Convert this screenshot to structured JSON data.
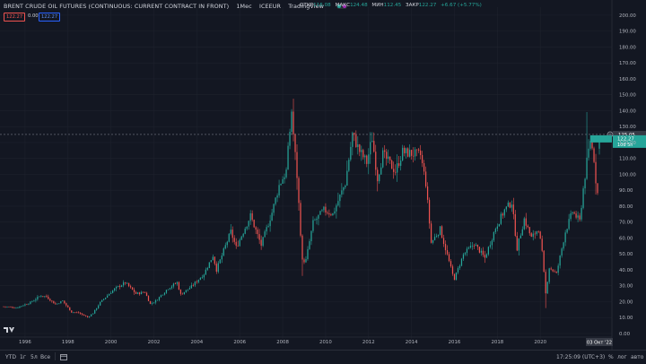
{
  "header": {
    "symbol_title": "BRENT CRUDE OIL FUTURES (CONTINUOUS: CURRENT CONTRACT IN FRONT)",
    "interval": "1Мес",
    "exchange": "ICEEUR",
    "source": "TradingView"
  },
  "ohlc": {
    "open_label": "ОТКР",
    "open": "116.08",
    "high_label": "МАКС",
    "high": "124.48",
    "low_label": "МИН",
    "low": "112.45",
    "close_label": "ЗАКР",
    "close": "122.27",
    "change": "+6.67 (+5.77%)"
  },
  "pills": {
    "sell": "122.27",
    "spread": "0.00",
    "buy": "122.27"
  },
  "price_scale": {
    "labels": [
      "200.00",
      "190.00",
      "180.00",
      "170.00",
      "160.00",
      "150.00",
      "140.00",
      "130.00",
      "120.00",
      "110.00",
      "100.00",
      "90.00",
      "80.00",
      "70.00",
      "60.00",
      "50.00",
      "40.00",
      "30.00",
      "20.00",
      "10.00",
      "0.00"
    ],
    "crosshair_price": "125.05",
    "last_price": "122.27",
    "countdown": "10d 5h"
  },
  "time_scale": {
    "labels": [
      "1996",
      "1998",
      "2000",
      "2002",
      "2004",
      "2006",
      "2008",
      "2010",
      "2012",
      "2014",
      "2016",
      "2018",
      "2020"
    ],
    "cursor_date": "03 Окт '22"
  },
  "bottom": {
    "ranges": [
      "YTD",
      "1г",
      "5л",
      "Все"
    ],
    "clock": "17:25:09 (UTC+3)",
    "percent": "%",
    "log": "лог",
    "auto": "авто"
  },
  "colors": {
    "up": "#26a69a",
    "down": "#ef5350",
    "background": "#131722",
    "grid": "#1e222d"
  },
  "chart_data": {
    "type": "candlestick",
    "title": "BRENT CRUDE OIL FUTURES (CONTINUOUS: CURRENT CONTRACT IN FRONT)",
    "interval": "monthly",
    "ylim": [
      0,
      205
    ],
    "xlim": [
      "1994-11",
      "2022-12"
    ],
    "anchors": [
      [
        "1995-01",
        17.0
      ],
      [
        "1995-08",
        16.2
      ],
      [
        "1996-04",
        19.5
      ],
      [
        "1996-10",
        24.0
      ],
      [
        "1997-01",
        23.2
      ],
      [
        "1997-06",
        18.3
      ],
      [
        "1997-10",
        20.5
      ],
      [
        "1998-03",
        13.5
      ],
      [
        "1998-07",
        13.0
      ],
      [
        "1998-12",
        10.2
      ],
      [
        "1999-03",
        12.8
      ],
      [
        "1999-07",
        19.5
      ],
      [
        "1999-12",
        25.0
      ],
      [
        "2000-03",
        28.0
      ],
      [
        "2000-09",
        32.0
      ],
      [
        "2001-03",
        25.0
      ],
      [
        "2001-08",
        26.0
      ],
      [
        "2001-11",
        18.5
      ],
      [
        "2002-02",
        20.5
      ],
      [
        "2002-09",
        28.5
      ],
      [
        "2003-02",
        32.0
      ],
      [
        "2003-04",
        24.5
      ],
      [
        "2003-10",
        29.5
      ],
      [
        "2004-05",
        37.5
      ],
      [
        "2004-10",
        49.0
      ],
      [
        "2004-12",
        40.0
      ],
      [
        "2005-08",
        64.0
      ],
      [
        "2005-11",
        54.0
      ],
      [
        "2006-07",
        74.0
      ],
      [
        "2007-01",
        55.5
      ],
      [
        "2007-07",
        76.0
      ],
      [
        "2007-11",
        93.0
      ],
      [
        "2008-03",
        102.0
      ],
      [
        "2008-06",
        140.0
      ],
      [
        "2008-07",
        125.0
      ],
      [
        "2008-09",
        99.0
      ],
      [
        "2008-12",
        45.5
      ],
      [
        "2009-02",
        46.0
      ],
      [
        "2009-06",
        69.5
      ],
      [
        "2009-12",
        77.5
      ],
      [
        "2010-05",
        75.0
      ],
      [
        "2010-12",
        94.5
      ],
      [
        "2011-04",
        125.0
      ],
      [
        "2011-08",
        114.5
      ],
      [
        "2011-12",
        107.5
      ],
      [
        "2012-03",
        123.0
      ],
      [
        "2012-06",
        97.5
      ],
      [
        "2012-09",
        112.5
      ],
      [
        "2013-04",
        102.0
      ],
      [
        "2013-08",
        114.0
      ],
      [
        "2014-06",
        112.0
      ],
      [
        "2014-09",
        94.5
      ],
      [
        "2014-12",
        57.0
      ],
      [
        "2015-05",
        65.5
      ],
      [
        "2015-12",
        37.0
      ],
      [
        "2016-01",
        34.5
      ],
      [
        "2016-06",
        49.5
      ],
      [
        "2016-12",
        56.5
      ],
      [
        "2017-06",
        47.5
      ],
      [
        "2017-12",
        66.5
      ],
      [
        "2018-05",
        77.5
      ],
      [
        "2018-09",
        82.5
      ],
      [
        "2018-12",
        53.5
      ],
      [
        "2019-04",
        72.0
      ],
      [
        "2019-08",
        60.0
      ],
      [
        "2019-12",
        66.0
      ],
      [
        "2020-02",
        50.5
      ],
      [
        "2020-04",
        25.0
      ],
      [
        "2020-06",
        41.5
      ],
      [
        "2020-10",
        37.5
      ],
      [
        "2021-03",
        64.0
      ],
      [
        "2021-07",
        76.5
      ],
      [
        "2021-11",
        70.5
      ],
      [
        "2022-01",
        91.0
      ],
      [
        "2022-03",
        107.5
      ],
      [
        "2022-05",
        122.0
      ],
      [
        "2022-07",
        110.0
      ],
      [
        "2022-08",
        96.5
      ],
      [
        "2022-09",
        88.0
      ],
      [
        "2022-10",
        122.27
      ]
    ],
    "last_candle": {
      "date": "2022-10",
      "open": 116.08,
      "high": 124.48,
      "low": 112.45,
      "close": 122.27
    }
  }
}
